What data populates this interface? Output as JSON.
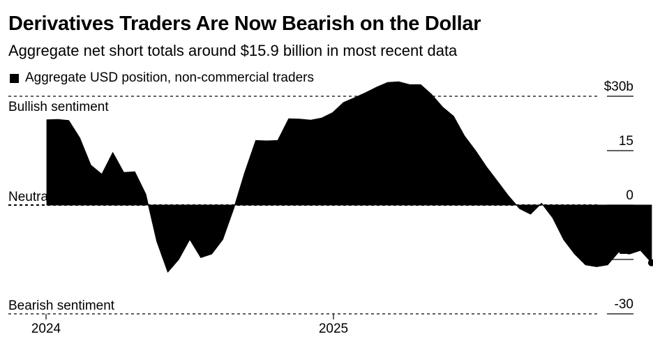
{
  "title": "Derivatives Traders Are Now Bearish on the Dollar",
  "subtitle": "Aggregate net short totals around $15.9 billion in most recent data",
  "colors": {
    "series": "#000000",
    "background": "#ffffff"
  },
  "chart_data": {
    "type": "area",
    "series": [
      {
        "name": "Aggregate USD position, non-commercial traders",
        "x": [
          "2024-01-02",
          "2024-01-16",
          "2024-01-30",
          "2024-02-13",
          "2024-02-27",
          "2024-03-12",
          "2024-03-26",
          "2024-04-09",
          "2024-04-23",
          "2024-05-07",
          "2024-05-21",
          "2024-06-04",
          "2024-06-18",
          "2024-07-02",
          "2024-07-16",
          "2024-07-30",
          "2024-08-13",
          "2024-08-27",
          "2024-09-10",
          "2024-09-24",
          "2024-10-08",
          "2024-10-22",
          "2024-11-05",
          "2024-11-19",
          "2024-12-03",
          "2024-12-17",
          "2024-12-31",
          "2025-01-14",
          "2025-01-28",
          "2025-02-11",
          "2025-02-25",
          "2025-03-11",
          "2025-03-25",
          "2025-04-08",
          "2025-04-22",
          "2025-05-06",
          "2025-05-20",
          "2025-06-03",
          "2025-06-17",
          "2025-07-01",
          "2025-07-15",
          "2025-07-29",
          "2025-08-12",
          "2025-08-26",
          "2025-09-09",
          "2025-09-23",
          "2025-10-07",
          "2025-10-21",
          "2025-11-04",
          "2025-11-18",
          "2025-12-02",
          "2025-12-16",
          "2025-12-30",
          "2026-01-13",
          "2026-01-27",
          "2026-02-10"
        ],
        "values": [
          23.5,
          23.6,
          23.3,
          18.5,
          11.0,
          8.5,
          14.5,
          9.0,
          9.2,
          3.0,
          -10.0,
          -18.5,
          -15.0,
          -9.5,
          -14.5,
          -13.5,
          -9.5,
          -1.0,
          9.0,
          17.8,
          17.7,
          17.8,
          23.8,
          23.7,
          23.4,
          24.0,
          25.5,
          28.3,
          29.6,
          31.0,
          32.5,
          33.8,
          34.0,
          33.2,
          33.2,
          30.5,
          27.0,
          24.5,
          19.0,
          15.0,
          10.5,
          6.5,
          2.5,
          -1.0,
          -2.5,
          0.5,
          -3.5,
          -9.5,
          -13.5,
          -16.5,
          -17.0,
          -16.5,
          -13.0,
          -13.5,
          -12.5,
          -15.9
        ]
      }
    ],
    "ylim": [
      -30,
      30
    ],
    "y_ticks": [
      30,
      15,
      0,
      -15,
      -30
    ],
    "y_tick_labels": [
      "$30b",
      "15",
      "0",
      "-15",
      "-30"
    ],
    "x_ticks": [
      "2024-01-01",
      "2025-01-01"
    ],
    "x_tick_labels": [
      "2024",
      "2025"
    ],
    "annotations": [
      {
        "text": "Bullish sentiment",
        "y": 30
      },
      {
        "text": "Neutral",
        "y": 0
      },
      {
        "text": "Bearish sentiment",
        "y": -30
      }
    ],
    "legend_position": "top-left",
    "grid": false
  }
}
